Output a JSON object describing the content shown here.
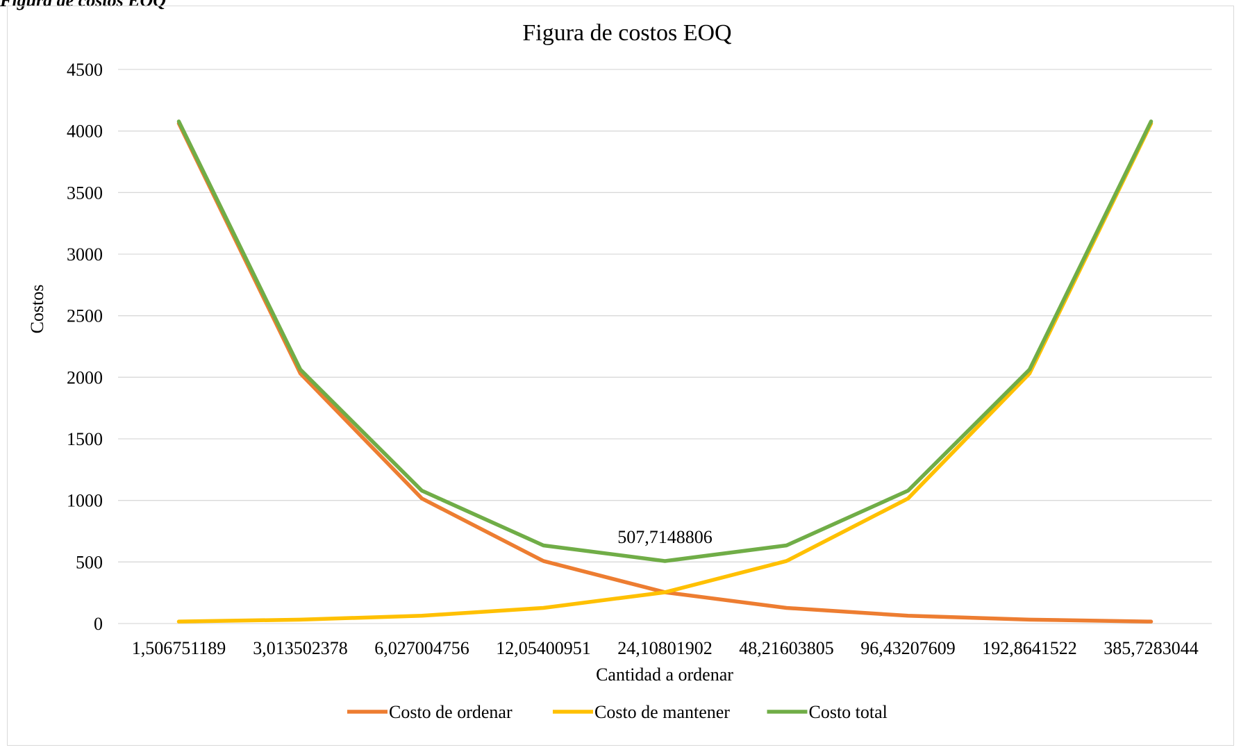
{
  "caption": "Figura de costos EOQ",
  "chart_data": {
    "type": "line",
    "title": "Figura de costos EOQ",
    "xlabel": "Cantidad a ordenar",
    "ylabel": "Costos",
    "categories": [
      "1,506751189",
      "3,013502378",
      "6,027004756",
      "12,05400951",
      "24,10801902",
      "48,21603805",
      "96,43207609",
      "192,8641522",
      "385,7283044"
    ],
    "yticks": [
      "0",
      "500",
      "1000",
      "1500",
      "2000",
      "2500",
      "3000",
      "3500",
      "4000",
      "4500"
    ],
    "ylim": [
      0,
      4500
    ],
    "grid": true,
    "legend_position": "bottom",
    "series": [
      {
        "name": "Costo de ordenar",
        "color": "#ED7D31",
        "values": [
          4061.7,
          2030.9,
          1015.4,
          507.7,
          253.9,
          126.9,
          63.5,
          31.7,
          15.9
        ]
      },
      {
        "name": "Costo de mantener",
        "color": "#FFC000",
        "values": [
          15.9,
          31.7,
          63.5,
          126.9,
          253.9,
          507.7,
          1015.4,
          2030.9,
          4061.7
        ]
      },
      {
        "name": "Costo total",
        "color": "#70AD47",
        "values": [
          4077.6,
          2062.6,
          1078.9,
          634.6,
          507.7,
          634.6,
          1078.9,
          2062.6,
          4077.6
        ]
      }
    ],
    "annotations": [
      {
        "series": "Costo total",
        "index": 4,
        "text": "507,7148806"
      }
    ]
  }
}
